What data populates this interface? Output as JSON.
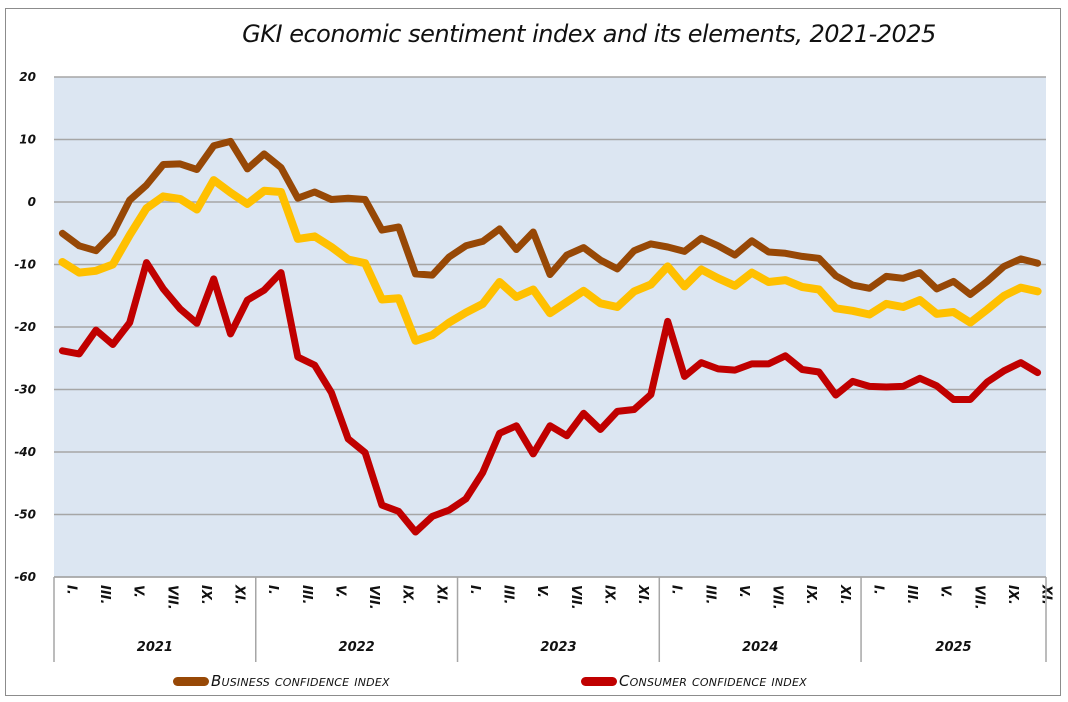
{
  "chart_data": {
    "type": "line",
    "title": "GKI economic sentiment index and its elements, 2021-2025",
    "xlabel": "",
    "ylabel": "",
    "ylim": [
      -60,
      20
    ],
    "yticks": [
      20,
      10,
      0,
      -10,
      -20,
      -30,
      -40,
      -50,
      -60
    ],
    "grid": true,
    "legend_position": "bottom",
    "years": [
      {
        "label": "2021",
        "months": 12
      },
      {
        "label": "2022",
        "months": 12
      },
      {
        "label": "2023",
        "months": 12
      },
      {
        "label": "2024",
        "months": 12
      },
      {
        "label": "2025",
        "months": 11
      }
    ],
    "month_tick_labels": [
      "I.",
      "III.",
      "V.",
      "VII.",
      "IX.",
      "XI."
    ],
    "series": [
      {
        "name": "GKI economic sentiment index",
        "color": "#FFC000",
        "in_legend": false,
        "values": [
          -9.6,
          -11.3,
          -11,
          -10,
          -5.3,
          -1,
          0.9,
          0.5,
          -1.2,
          3.5,
          1.5,
          -0.3,
          1.8,
          1.6,
          -5.9,
          -5.5,
          -7.2,
          -9.2,
          -9.8,
          -15.6,
          -15.4,
          -22.2,
          -21.3,
          -19.3,
          -17.7,
          -16.3,
          -12.8,
          -15.2,
          -14,
          -17.8,
          -16,
          -14.2,
          -16.2,
          -16.8,
          -14.3,
          -13.2,
          -10.3,
          -13.5,
          -10.8,
          -12.2,
          -13.4,
          -11.3,
          -12.8,
          -12.5,
          -13.6,
          -14,
          -17,
          -17.4,
          -18,
          -16.3,
          -16.8,
          -15.7,
          -17.9,
          -17.6,
          -19.3,
          -17.2,
          -15,
          -13.7,
          -14.3
        ]
      },
      {
        "name": "Business confidence index",
        "color": "#974806",
        "in_legend": true,
        "values": [
          -5,
          -7,
          -7.8,
          -5,
          0.3,
          2.7,
          6,
          6.1,
          5.2,
          9,
          9.7,
          5.3,
          7.7,
          5.5,
          0.6,
          1.6,
          0.4,
          0.6,
          0.4,
          -4.5,
          -4,
          -11.5,
          -11.7,
          -8.8,
          -7,
          -6.3,
          -4.3,
          -7.6,
          -4.8,
          -11.6,
          -8.5,
          -7.3,
          -9.3,
          -10.7,
          -7.8,
          -6.7,
          -7.2,
          -7.9,
          -5.8,
          -7,
          -8.5,
          -6.2,
          -8,
          -8.2,
          -8.7,
          -9,
          -11.8,
          -13.3,
          -13.8,
          -11.9,
          -12.2,
          -11.3,
          -13.9,
          -12.7,
          -14.8,
          -12.7,
          -10.3,
          -9.1,
          -9.8
        ]
      },
      {
        "name": "Consumer confidence index",
        "color": "#C00000",
        "in_legend": true,
        "values": [
          -23.8,
          -24.3,
          -20.5,
          -22.8,
          -19.3,
          -9.7,
          -13.9,
          -17.1,
          -19.4,
          -12.3,
          -21.1,
          -15.7,
          -14.1,
          -11.3,
          -24.8,
          -26.1,
          -30.5,
          -37.9,
          -40.1,
          -48.5,
          -49.5,
          -52.8,
          -50.3,
          -49.3,
          -47.5,
          -43.3,
          -37,
          -35.8,
          -40.3,
          -35.8,
          -37.4,
          -33.8,
          -36.4,
          -33.5,
          -33.2,
          -30.8,
          -19.1,
          -27.9,
          -25.7,
          -26.7,
          -26.9,
          -25.9,
          -25.9,
          -24.6,
          -26.8,
          -27.2,
          -30.9,
          -28.7,
          -29.5,
          -29.6,
          -29.5,
          -28.2,
          -29.4,
          -31.6,
          -31.6,
          -28.8,
          -27,
          -25.7,
          -27.3
        ]
      }
    ]
  },
  "legend": {
    "business_label": "Business confidence index",
    "consumer_label": "Consumer confidence index",
    "business_color": "#974806",
    "consumer_color": "#C00000"
  },
  "colors": {
    "plot_background": "#DCE6F2",
    "gridline": "#A6A6A6"
  }
}
